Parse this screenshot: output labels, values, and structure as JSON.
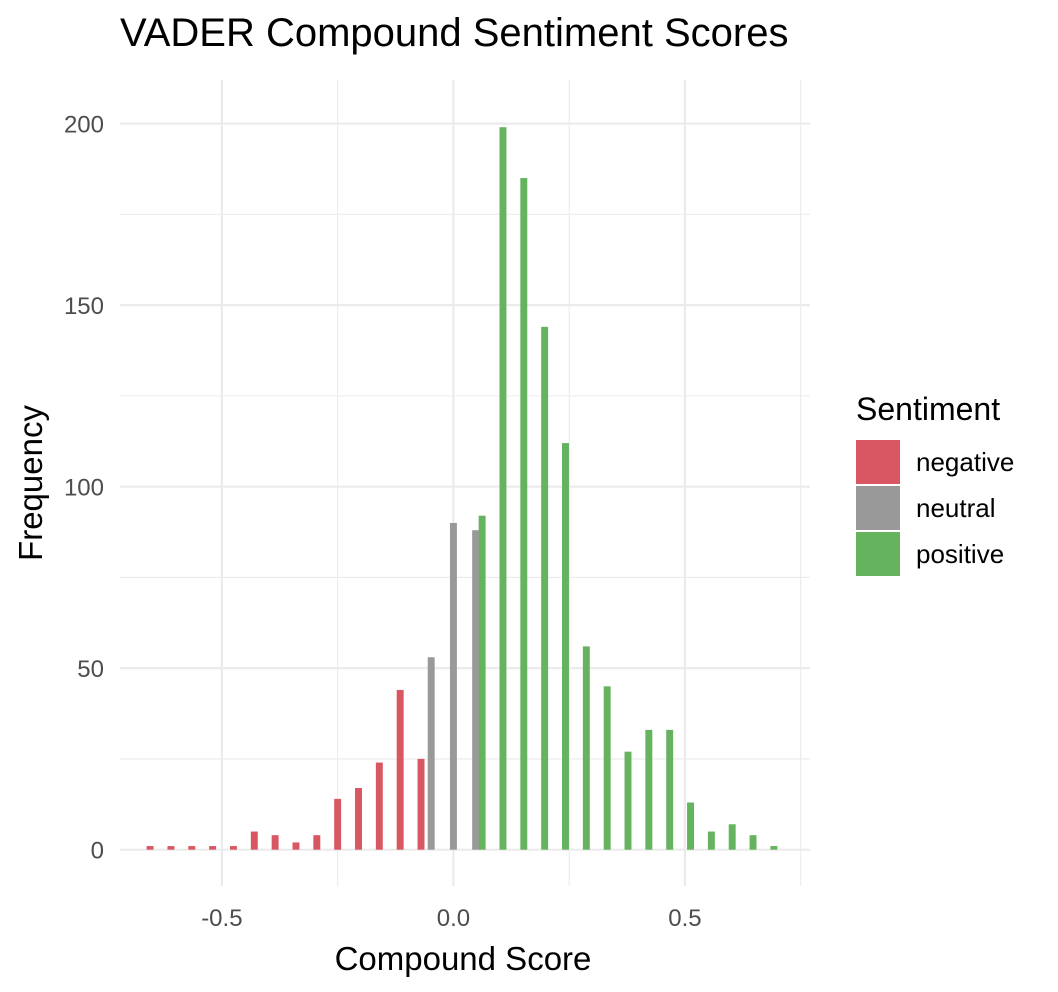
{
  "chart_data": {
    "type": "bar",
    "title": "VADER Compound Sentiment Scores",
    "xlabel": "Compound Score",
    "ylabel": "Frequency",
    "xlim": [
      -0.72,
      0.77
    ],
    "ylim": [
      -10,
      212
    ],
    "x_ticks": [
      -0.5,
      0.0,
      0.5
    ],
    "x_tick_labels": [
      "-0.5",
      "0.0",
      "0.5"
    ],
    "y_ticks": [
      0,
      50,
      100,
      150,
      200
    ],
    "y_tick_labels": [
      "0",
      "50",
      "100",
      "150",
      "200"
    ],
    "grid": true,
    "legend": {
      "title": "Sentiment",
      "placement": "right",
      "entries": [
        {
          "label": "negative",
          "color": "#d95763"
        },
        {
          "label": "neutral",
          "color": "#999999"
        },
        {
          "label": "positive",
          "color": "#66b35f"
        }
      ]
    },
    "bar_width": 0.015,
    "series": [
      {
        "name": "negative",
        "color": "#d95763",
        "x": [
          -0.655,
          -0.61,
          -0.565,
          -0.52,
          -0.475,
          -0.43,
          -0.385,
          -0.34,
          -0.295,
          -0.25,
          -0.205,
          -0.16,
          -0.115,
          -0.07
        ],
        "values": [
          1,
          1,
          1,
          1,
          1,
          5,
          4,
          2,
          4,
          14,
          17,
          24,
          44,
          25
        ]
      },
      {
        "name": "neutral",
        "color": "#999999",
        "x": [
          -0.048,
          0.0,
          0.048
        ],
        "values": [
          53,
          90,
          88
        ]
      },
      {
        "name": "positive",
        "color": "#66b35f",
        "x": [
          0.062,
          0.107,
          0.152,
          0.197,
          0.242,
          0.287,
          0.332,
          0.377,
          0.422,
          0.467,
          0.512,
          0.557,
          0.602,
          0.647,
          0.692
        ],
        "values": [
          92,
          199,
          185,
          144,
          112,
          56,
          45,
          27,
          33,
          33,
          13,
          5,
          7,
          4,
          1
        ]
      }
    ]
  }
}
